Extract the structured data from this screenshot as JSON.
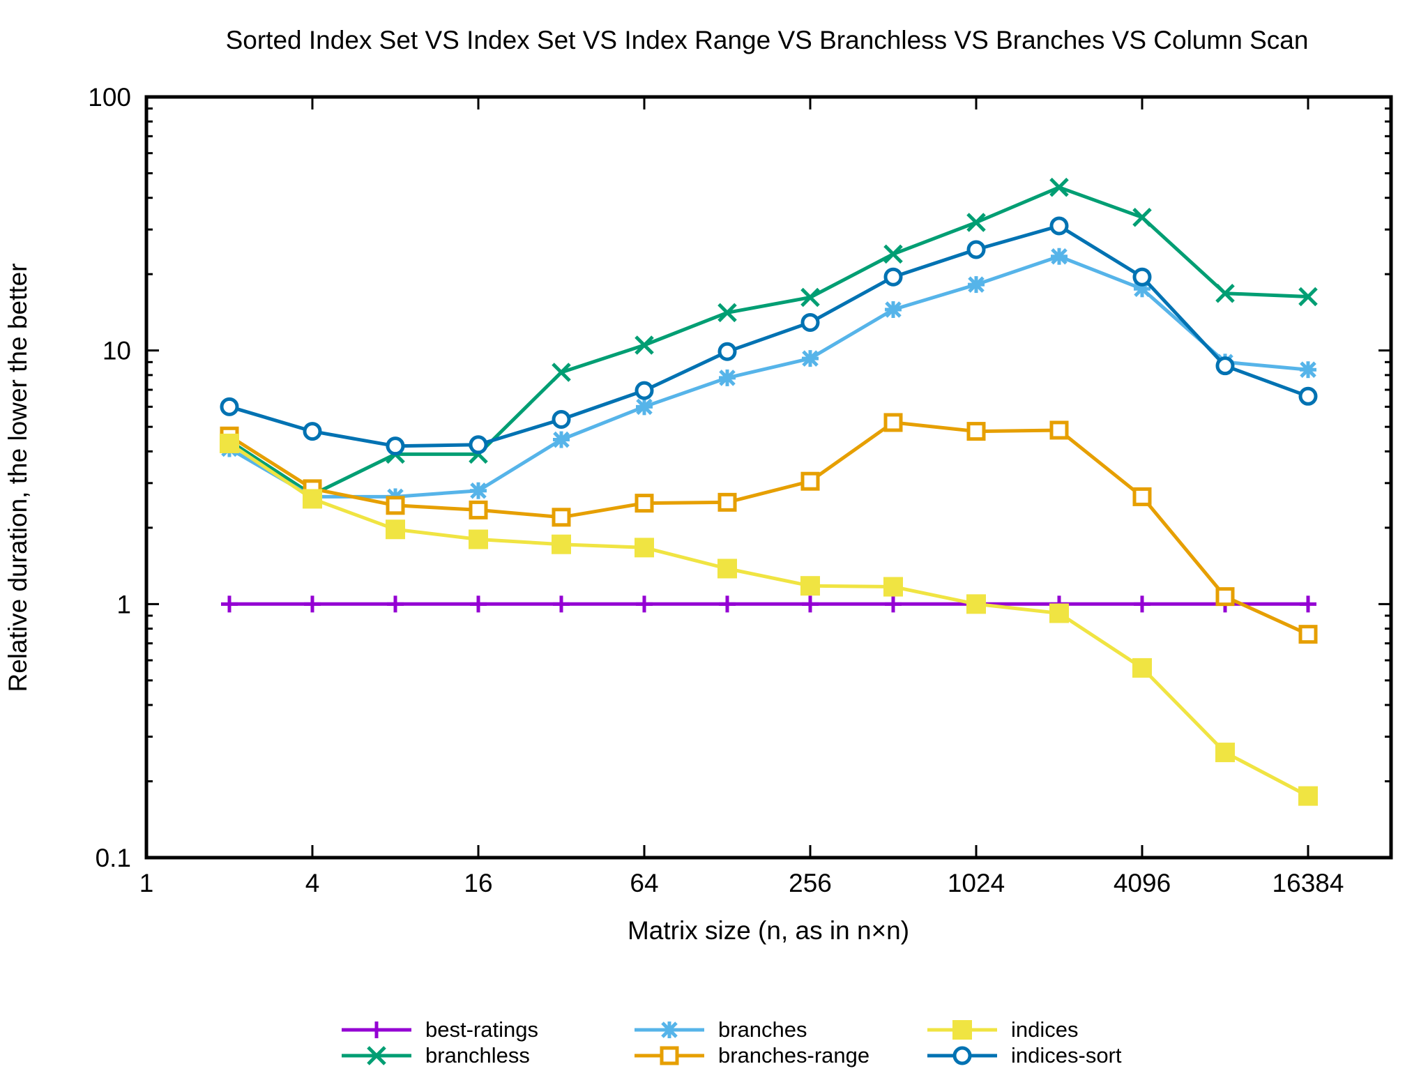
{
  "chart_data": {
    "type": "line",
    "title": "Sorted Index Set VS Index Set VS Index Range VS Branchless VS Branches VS Column Scan",
    "xlabel": "Matrix size (n, as in n×n)",
    "ylabel": "Relative duration, the lower the better",
    "xscale": "log2",
    "yscale": "log10",
    "xlim": [
      1,
      32768
    ],
    "ylim": [
      0.1,
      100
    ],
    "x_ticks": [
      1,
      4,
      16,
      64,
      256,
      1024,
      4096,
      16384
    ],
    "x_tick_labels": [
      "1",
      "4",
      "16",
      "64",
      "256",
      "1024",
      "4096",
      "16384"
    ],
    "y_ticks": [
      0.1,
      1,
      10,
      100
    ],
    "y_tick_labels": [
      "0.1",
      "1",
      "10",
      "100"
    ],
    "grid": false,
    "legend_position": "bottom",
    "x": [
      2,
      4,
      8,
      16,
      32,
      64,
      128,
      256,
      512,
      1024,
      2048,
      4096,
      8192,
      16384
    ],
    "series": [
      {
        "name": "best-ratings",
        "color": "#9400d3",
        "marker": "plus",
        "values": [
          1,
          1,
          1,
          1,
          1,
          1,
          1,
          1,
          1,
          1,
          1,
          1,
          1,
          1
        ]
      },
      {
        "name": "branchless",
        "color": "#009e73",
        "marker": "cross",
        "values": [
          4.4,
          2.7,
          3.9,
          3.9,
          8.2,
          10.5,
          14.1,
          16.2,
          24,
          32,
          44,
          33.5,
          16.8,
          16.3
        ]
      },
      {
        "name": "branches",
        "color": "#56b4e9",
        "marker": "star",
        "values": [
          4.1,
          2.65,
          2.65,
          2.8,
          4.45,
          6,
          7.8,
          9.3,
          14.5,
          18.2,
          23.5,
          17.5,
          9,
          8.4
        ]
      },
      {
        "name": "branches-range",
        "color": "#e69f00",
        "marker": "open-square",
        "values": [
          4.6,
          2.85,
          2.45,
          2.35,
          2.2,
          2.5,
          2.52,
          3.05,
          5.2,
          4.8,
          4.85,
          2.65,
          1.07,
          0.76
        ]
      },
      {
        "name": "indices",
        "color": "#f0e442",
        "marker": "filled-square",
        "values": [
          4.3,
          2.6,
          1.97,
          1.8,
          1.72,
          1.67,
          1.38,
          1.18,
          1.17,
          1.0,
          0.92,
          0.56,
          0.26,
          0.175
        ]
      },
      {
        "name": "indices-sort",
        "color": "#0072b2",
        "marker": "open-circle",
        "values": [
          6.0,
          4.8,
          4.2,
          4.25,
          5.35,
          6.95,
          9.9,
          12.9,
          19.5,
          25,
          31,
          19.5,
          8.7,
          6.6
        ]
      }
    ]
  }
}
